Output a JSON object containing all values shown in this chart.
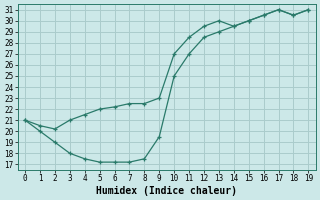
{
  "xlabel": "Humidex (Indice chaleur)",
  "bg_color": "#cce8e8",
  "grid_color": "#aacccc",
  "line_color": "#2a7a6a",
  "x_upper": [
    0,
    1,
    2,
    3,
    4,
    5,
    6,
    7,
    8,
    9,
    10,
    11,
    12,
    13,
    14,
    15,
    16,
    17,
    18,
    19
  ],
  "y_upper": [
    21.0,
    20.5,
    20.2,
    21.0,
    21.5,
    22.0,
    22.2,
    22.5,
    22.5,
    23.0,
    27.0,
    28.5,
    29.5,
    30.0,
    29.5,
    30.0,
    30.5,
    31.0,
    30.5,
    31.0
  ],
  "x_lower": [
    0,
    1,
    2,
    3,
    4,
    5,
    6,
    7,
    8,
    9,
    10,
    11,
    12,
    13,
    14,
    15,
    16,
    17,
    18,
    19
  ],
  "y_lower": [
    21.0,
    20.0,
    19.0,
    18.0,
    17.5,
    17.2,
    17.2,
    17.2,
    17.5,
    19.5,
    25.0,
    27.0,
    28.5,
    29.0,
    29.5,
    30.0,
    30.5,
    31.0,
    30.5,
    31.0
  ],
  "ylim": [
    16.5,
    31.5
  ],
  "xlim": [
    -0.5,
    19.5
  ],
  "yticks": [
    17,
    18,
    19,
    20,
    21,
    22,
    23,
    24,
    25,
    26,
    27,
    28,
    29,
    30,
    31
  ],
  "xticks": [
    0,
    1,
    2,
    3,
    4,
    5,
    6,
    7,
    8,
    9,
    10,
    11,
    12,
    13,
    14,
    15,
    16,
    17,
    18,
    19
  ],
  "tick_fontsize": 5.5,
  "xlabel_fontsize": 7,
  "marker_size": 2.5,
  "linewidth": 0.9
}
